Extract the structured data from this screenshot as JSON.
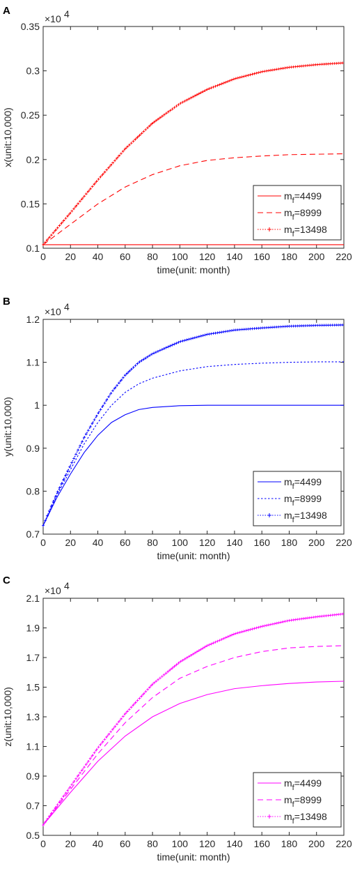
{
  "chart_data": [
    {
      "panel": "A",
      "type": "line",
      "color": "#ff0000",
      "xlabel": "time(unit: month)",
      "ylabel": "x(unit:10,000)",
      "multiplier_base": "×10",
      "multiplier_exp": "4",
      "xlim": [
        0,
        220
      ],
      "ylim": [
        0.1,
        0.35
      ],
      "xticks": [
        0,
        20,
        40,
        60,
        80,
        100,
        120,
        140,
        160,
        180,
        200,
        220
      ],
      "yticks": [
        0.1,
        0.15,
        0.2,
        0.25,
        0.3,
        0.35
      ],
      "ytick_labels": [
        "0.1",
        "0.15",
        "0.2",
        "0.25",
        "0.3",
        "0.35"
      ],
      "legend_position": "lower-right",
      "legend_prefix": "m",
      "legend_sub": "f",
      "series": [
        {
          "name": "=4499",
          "style": "solid",
          "x": [
            0,
            220
          ],
          "y": [
            0.104,
            0.104
          ]
        },
        {
          "name": "=8999",
          "style": "dashed",
          "x": [
            0,
            20,
            40,
            60,
            80,
            100,
            120,
            140,
            160,
            180,
            200,
            220
          ],
          "y": [
            0.104,
            0.127,
            0.15,
            0.169,
            0.183,
            0.193,
            0.199,
            0.202,
            0.204,
            0.2055,
            0.206,
            0.2065
          ]
        },
        {
          "name": "=13498",
          "style": "dotted-plus",
          "x": [
            0,
            20,
            40,
            60,
            80,
            100,
            120,
            140,
            160,
            180,
            200,
            220
          ],
          "y": [
            0.104,
            0.14,
            0.177,
            0.212,
            0.241,
            0.263,
            0.279,
            0.291,
            0.299,
            0.304,
            0.307,
            0.309
          ]
        }
      ]
    },
    {
      "panel": "B",
      "type": "line",
      "color": "#0000ff",
      "xlabel": "time(unit: month)",
      "ylabel": "y(unit:10,000)",
      "multiplier_base": "×10",
      "multiplier_exp": "4",
      "xlim": [
        0,
        220
      ],
      "ylim": [
        0.7,
        1.2
      ],
      "xticks": [
        0,
        20,
        40,
        60,
        80,
        100,
        120,
        140,
        160,
        180,
        200,
        220
      ],
      "yticks": [
        0.7,
        0.8,
        0.9,
        1.0,
        1.1,
        1.2
      ],
      "ytick_labels": [
        "0.7",
        "0.8",
        "0.9",
        "1",
        "1.1",
        "1.2"
      ],
      "legend_position": "lower-right",
      "legend_prefix": "m",
      "legend_sub": "f",
      "series": [
        {
          "name": "=4499",
          "style": "solid",
          "x": [
            0,
            10,
            20,
            30,
            40,
            50,
            60,
            70,
            80,
            100,
            120,
            140,
            160,
            180,
            200,
            220
          ],
          "y": [
            0.72,
            0.785,
            0.84,
            0.89,
            0.93,
            0.96,
            0.978,
            0.99,
            0.995,
            0.999,
            1.0,
            1.0,
            1.0,
            1.0,
            1.0,
            1.0
          ]
        },
        {
          "name": "=8999",
          "style": "dotted",
          "x": [
            0,
            10,
            20,
            30,
            40,
            50,
            60,
            70,
            80,
            100,
            120,
            140,
            160,
            180,
            200,
            220
          ],
          "y": [
            0.72,
            0.79,
            0.85,
            0.91,
            0.96,
            1.0,
            1.03,
            1.05,
            1.063,
            1.08,
            1.09,
            1.095,
            1.098,
            1.1,
            1.101,
            1.101
          ]
        },
        {
          "name": "=13498",
          "style": "dotted-plus",
          "x": [
            0,
            10,
            20,
            30,
            40,
            50,
            60,
            70,
            80,
            100,
            120,
            140,
            160,
            180,
            200,
            220
          ],
          "y": [
            0.72,
            0.795,
            0.86,
            0.925,
            0.98,
            1.03,
            1.07,
            1.1,
            1.12,
            1.148,
            1.165,
            1.175,
            1.18,
            1.184,
            1.186,
            1.187
          ]
        }
      ]
    },
    {
      "panel": "C",
      "type": "line",
      "color": "#ff00ff",
      "xlabel": "time(unit: month)",
      "ylabel": "z(unit:10,000)",
      "multiplier_base": "×10",
      "multiplier_exp": "4",
      "xlim": [
        0,
        220
      ],
      "ylim": [
        0.5,
        2.1
      ],
      "xticks": [
        0,
        20,
        40,
        60,
        80,
        100,
        120,
        140,
        160,
        180,
        200,
        220
      ],
      "yticks": [
        0.5,
        0.7,
        0.9,
        1.1,
        1.3,
        1.5,
        1.7,
        1.9,
        2.1
      ],
      "ytick_labels": [
        "0.5",
        "0.7",
        "0.9",
        "1.1",
        "1.3",
        "1.5",
        "1.7",
        "1.9",
        "2.1"
      ],
      "legend_position": "lower-right",
      "legend_prefix": "m",
      "legend_sub": "f",
      "series": [
        {
          "name": "=4499",
          "style": "solid",
          "x": [
            0,
            20,
            40,
            60,
            80,
            100,
            120,
            140,
            160,
            180,
            200,
            220
          ],
          "y": [
            0.57,
            0.79,
            1.0,
            1.17,
            1.3,
            1.39,
            1.45,
            1.49,
            1.51,
            1.525,
            1.535,
            1.54
          ]
        },
        {
          "name": "=8999",
          "style": "dashed",
          "x": [
            0,
            20,
            40,
            60,
            80,
            100,
            120,
            140,
            160,
            180,
            200,
            220
          ],
          "y": [
            0.57,
            0.81,
            1.05,
            1.26,
            1.43,
            1.56,
            1.64,
            1.7,
            1.74,
            1.765,
            1.775,
            1.78
          ]
        },
        {
          "name": "=13498",
          "style": "dotted-plus",
          "x": [
            0,
            20,
            40,
            60,
            80,
            100,
            120,
            140,
            160,
            180,
            200,
            220
          ],
          "y": [
            0.57,
            0.83,
            1.09,
            1.32,
            1.52,
            1.67,
            1.78,
            1.86,
            1.91,
            1.95,
            1.975,
            1.995
          ]
        }
      ]
    }
  ]
}
